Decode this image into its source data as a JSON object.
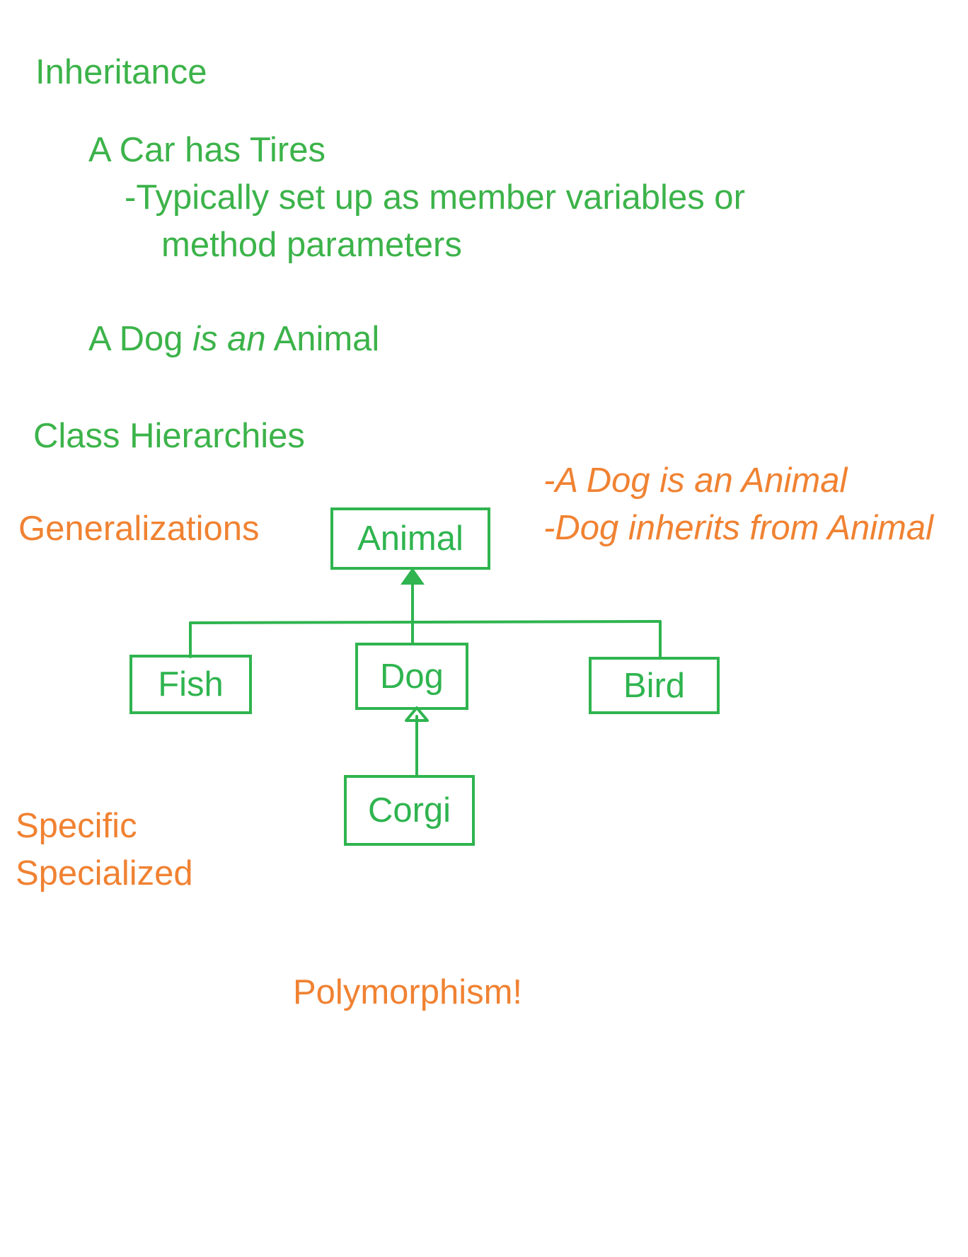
{
  "notes": {
    "title": "Inheritance",
    "has_a": "A Car has Tires",
    "has_a_detail_line1": "-Typically set up as member variables or",
    "has_a_detail_line2": "method parameters",
    "is_a_prefix": "A Dog ",
    "is_a_em": "is an",
    "is_a_suffix": " Animal",
    "section2": "Class Hierarchies",
    "generalizations": "Generalizations",
    "side_note1": "-A Dog is an Animal",
    "side_note2": "-Dog inherits from Animal",
    "specific": "Specific",
    "specialized": "Specialized",
    "polymorphism": "Polymorphism!"
  },
  "diagram": {
    "nodes": {
      "animal": "Animal",
      "fish": "Fish",
      "dog": "Dog",
      "bird": "Bird",
      "corgi": "Corgi"
    },
    "edges": [
      {
        "from": "fish",
        "to": "animal"
      },
      {
        "from": "dog",
        "to": "animal"
      },
      {
        "from": "bird",
        "to": "animal"
      },
      {
        "from": "corgi",
        "to": "dog"
      }
    ],
    "colors": {
      "lines": "#2fb44f",
      "green_text": "#3cb34a",
      "orange_text": "#f08232"
    }
  }
}
